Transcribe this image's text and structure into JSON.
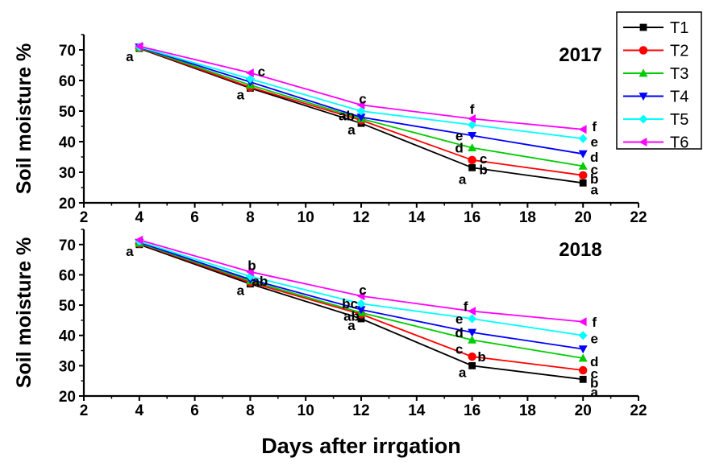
{
  "chart_data": {
    "type": "line",
    "xlabel": "Days after irrgation",
    "x": [
      4,
      8,
      12,
      16,
      20
    ],
    "x_ticks": [
      "2",
      "4",
      "6",
      "8",
      "10",
      "12",
      "14",
      "16",
      "18",
      "20",
      "22"
    ],
    "xlim": [
      2,
      22
    ],
    "ylim": [
      20,
      75
    ],
    "y_ticks": [
      "20",
      "30",
      "40",
      "50",
      "60",
      "70"
    ],
    "legend_position": "top-right",
    "grid": false,
    "series_style": [
      {
        "name": "T1",
        "color": "#000000",
        "marker": "square"
      },
      {
        "name": "T2",
        "color": "#ff0000",
        "marker": "circle"
      },
      {
        "name": "T3",
        "color": "#00cc00",
        "marker": "triangle-up"
      },
      {
        "name": "T4",
        "color": "#0000ff",
        "marker": "triangle-down"
      },
      {
        "name": "T5",
        "color": "#00ffff",
        "marker": "diamond"
      },
      {
        "name": "T6",
        "color": "#ff00ff",
        "marker": "triangle-left"
      }
    ],
    "panels": [
      {
        "title": "2017",
        "ylabel": "Soil moisture %",
        "series": [
          {
            "name": "T1",
            "values": [
              70.5,
              57.5,
              46.0,
              31.5,
              26.5
            ]
          },
          {
            "name": "T2",
            "values": [
              70.7,
              57.8,
              47.0,
              34.0,
              29.0
            ]
          },
          {
            "name": "T3",
            "values": [
              70.8,
              58.5,
              47.5,
              38.0,
              32.0
            ]
          },
          {
            "name": "T4",
            "values": [
              70.9,
              59.5,
              48.0,
              42.0,
              36.0
            ]
          },
          {
            "name": "T5",
            "values": [
              71.0,
              60.5,
              50.0,
              45.5,
              41.0
            ]
          },
          {
            "name": "T6",
            "values": [
              71.2,
              62.5,
              52.0,
              47.5,
              44.0
            ]
          }
        ],
        "annotations": [
          {
            "x": 4,
            "y": 70.5,
            "text": "a"
          },
          {
            "x": 8,
            "y": 57.5,
            "text": "a"
          },
          {
            "x": 8,
            "y": 62.5,
            "text": "c"
          },
          {
            "x": 12,
            "y": 46.0,
            "text": "a"
          },
          {
            "x": 12,
            "y": 48.0,
            "text": "ab"
          },
          {
            "x": 12,
            "y": 52.0,
            "text": "c"
          },
          {
            "x": 16,
            "y": 31.5,
            "text": "a"
          },
          {
            "x": 16,
            "y": 31.5,
            "text": "b"
          },
          {
            "x": 16,
            "y": 34.0,
            "text": "c"
          },
          {
            "x": 16,
            "y": 38.0,
            "text": "d"
          },
          {
            "x": 16,
            "y": 42.0,
            "text": "e"
          },
          {
            "x": 16,
            "y": 47.5,
            "text": "f"
          },
          {
            "x": 20,
            "y": 26.5,
            "text": "a"
          },
          {
            "x": 20,
            "y": 29.0,
            "text": "b"
          },
          {
            "x": 20,
            "y": 32.0,
            "text": "c"
          },
          {
            "x": 20,
            "y": 36.0,
            "text": "d"
          },
          {
            "x": 20,
            "y": 41.0,
            "text": "e"
          },
          {
            "x": 20,
            "y": 44.0,
            "text": "f"
          }
        ]
      },
      {
        "title": "2018",
        "ylabel": "Soil moisture  %",
        "series": [
          {
            "name": "T1",
            "values": [
              70.0,
              57.0,
              45.5,
              30.0,
              25.5
            ]
          },
          {
            "name": "T2",
            "values": [
              70.3,
              57.5,
              47.0,
              33.0,
              28.5
            ]
          },
          {
            "name": "T3",
            "values": [
              70.5,
              58.0,
              47.5,
              38.5,
              32.5
            ]
          },
          {
            "name": "T4",
            "values": [
              70.7,
              58.5,
              48.5,
              41.0,
              35.5
            ]
          },
          {
            "name": "T5",
            "values": [
              71.0,
              59.5,
              50.5,
              45.5,
              40.0
            ]
          },
          {
            "name": "T6",
            "values": [
              71.5,
              61.0,
              53.0,
              48.0,
              44.5
            ]
          }
        ],
        "annotations": [
          {
            "x": 4,
            "y": 70.0,
            "text": "a"
          },
          {
            "x": 8,
            "y": 57.0,
            "text": "a"
          },
          {
            "x": 8,
            "y": 58.5,
            "text": "ab"
          },
          {
            "x": 8,
            "y": 61.0,
            "text": "b"
          },
          {
            "x": 12,
            "y": 45.5,
            "text": "a"
          },
          {
            "x": 12,
            "y": 47.5,
            "text": "ab"
          },
          {
            "x": 12,
            "y": 50.5,
            "text": "bc"
          },
          {
            "x": 12,
            "y": 53.0,
            "text": "c"
          },
          {
            "x": 16,
            "y": 30.0,
            "text": "a"
          },
          {
            "x": 16,
            "y": 33.0,
            "text": "b"
          },
          {
            "x": 16,
            "y": 35.5,
            "text": "c"
          },
          {
            "x": 16,
            "y": 41.0,
            "text": "d"
          },
          {
            "x": 16,
            "y": 45.5,
            "text": "e"
          },
          {
            "x": 16,
            "y": 48.0,
            "text": "f"
          },
          {
            "x": 20,
            "y": 23.5,
            "text": "a"
          },
          {
            "x": 20,
            "y": 25.5,
            "text": "b"
          },
          {
            "x": 20,
            "y": 28.5,
            "text": "c"
          },
          {
            "x": 20,
            "y": 32.5,
            "text": "d"
          },
          {
            "x": 20,
            "y": 40.0,
            "text": "e"
          },
          {
            "x": 20,
            "y": 44.5,
            "text": "f"
          }
        ]
      }
    ]
  }
}
